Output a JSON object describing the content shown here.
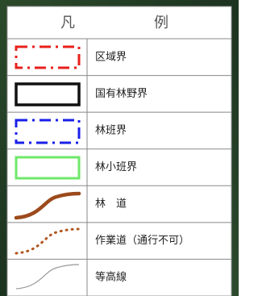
{
  "legend": {
    "title_left": "凡",
    "title_right": "例",
    "items": [
      {
        "label": "区域界"
      },
      {
        "label": "国有林野界"
      },
      {
        "label": "林班界"
      },
      {
        "label": "林小班界"
      },
      {
        "label": "林　道"
      },
      {
        "label": "作業道（通行不可）"
      },
      {
        "label": "等高線"
      }
    ]
  }
}
